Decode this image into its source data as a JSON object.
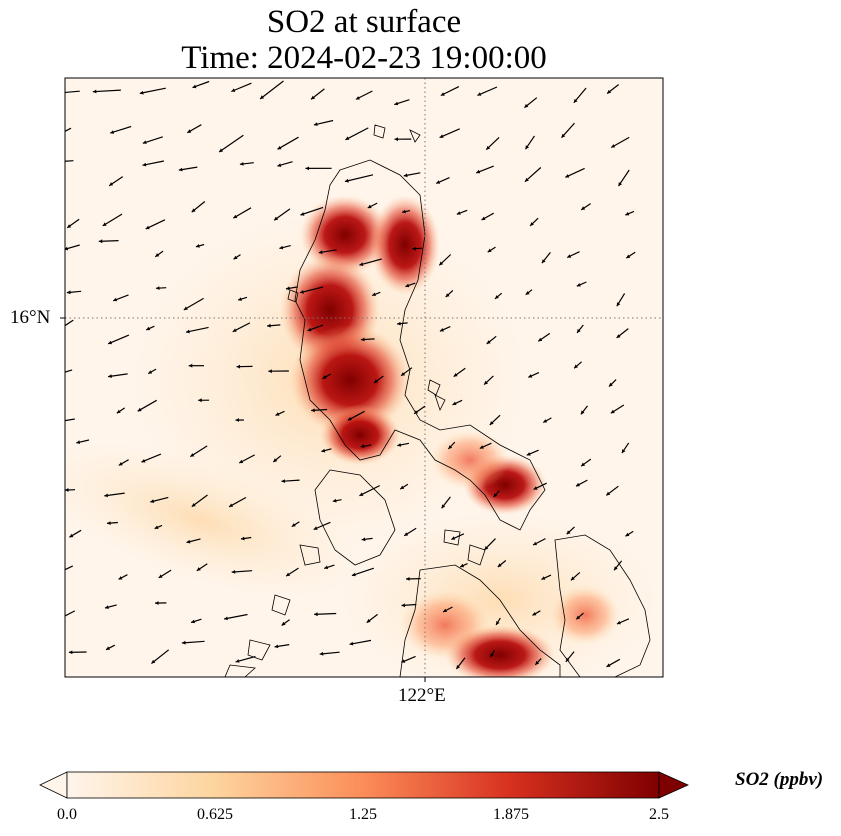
{
  "title": {
    "line1": "SO2 at surface",
    "line2": "Time: 2024-02-23 19:00:00"
  },
  "axes": {
    "lat_label": "16°N",
    "lon_label": "122°E"
  },
  "colorbar": {
    "label": "SO2 (ppbv)",
    "ticks": [
      "0.0",
      "0.625",
      "1.25",
      "1.875",
      "2.5"
    ],
    "range": [
      0.0,
      2.5
    ],
    "colors": [
      "#fff5eb",
      "#fdd49e",
      "#fc8d59",
      "#d7301f",
      "#7f0000"
    ]
  },
  "map": {
    "gridlines": "dotted",
    "features": [
      "coastlines",
      "wind-vectors",
      "so2-field"
    ]
  }
}
